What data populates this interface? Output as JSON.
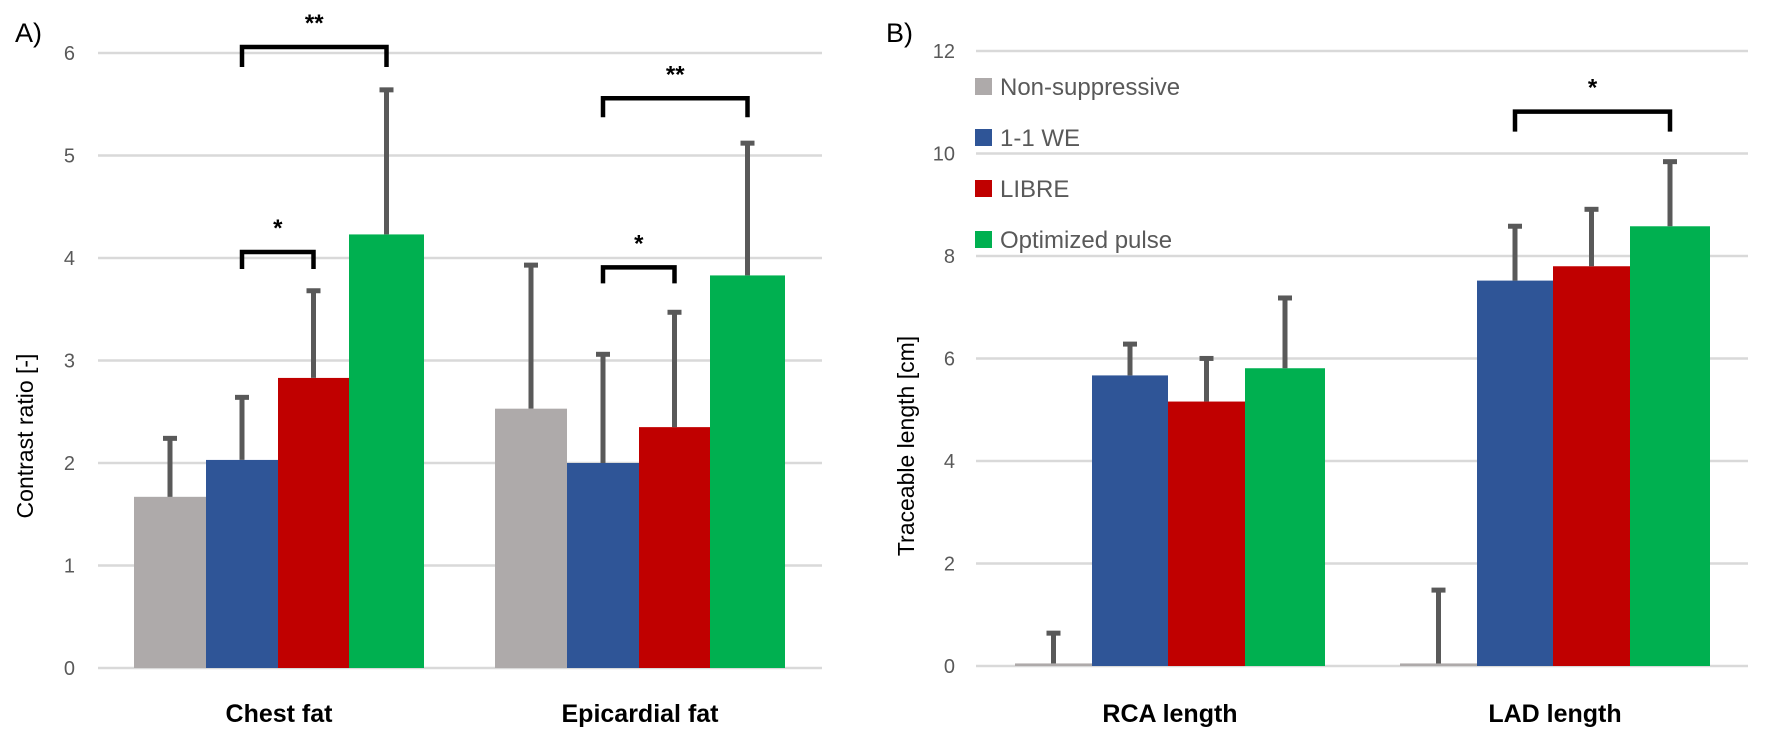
{
  "figure": {
    "panel_labels": [
      "A)",
      "B)"
    ]
  },
  "legend": {
    "placement": "top-left of panel B",
    "entries": [
      {
        "name": "Non-suppressive",
        "color": "#aeaaaa"
      },
      {
        "name": "1-1 WE",
        "color": "#2f5597"
      },
      {
        "name": "LIBRE",
        "color": "#c00000"
      },
      {
        "name": "Optimized pulse",
        "color": "#00b050"
      }
    ]
  },
  "chart_data": [
    {
      "type": "bar",
      "panel": "A)",
      "title": "",
      "xlabel": "",
      "ylabel": "Contrast ratio [-]",
      "ylim": [
        0,
        6
      ],
      "yticks": [
        0,
        1,
        2,
        3,
        4,
        5,
        6
      ],
      "grid": true,
      "categories": [
        "Chest fat",
        "Epicardial fat"
      ],
      "series": [
        {
          "name": "Non-suppressive",
          "color": "#aeaaaa",
          "values": [
            1.67,
            2.53
          ],
          "error_plus": [
            0.59,
            1.42
          ]
        },
        {
          "name": "1-1 WE",
          "color": "#2f5597",
          "values": [
            2.03,
            2.0
          ],
          "error_plus": [
            0.63,
            1.08
          ]
        },
        {
          "name": "LIBRE",
          "color": "#c00000",
          "values": [
            2.83,
            2.35
          ],
          "error_plus": [
            0.87,
            1.14
          ]
        },
        {
          "name": "Optimized pulse",
          "color": "#00b050",
          "values": [
            4.23,
            3.83
          ],
          "error_plus": [
            1.43,
            1.31
          ]
        }
      ],
      "significance": [
        {
          "category": "Chest fat",
          "from": "1-1 WE",
          "to": "LIBRE",
          "label": "*",
          "level": 4.0
        },
        {
          "category": "Chest fat",
          "from": "1-1 WE",
          "to": "Optimized pulse",
          "label": "**",
          "level": 6.0
        },
        {
          "category": "Epicardial fat",
          "from": "1-1 WE",
          "to": "LIBRE",
          "label": "*",
          "level": 3.85
        },
        {
          "category": "Epicardial fat",
          "from": "1-1 WE",
          "to": "Optimized pulse",
          "label": "**",
          "level": 5.5
        }
      ]
    },
    {
      "type": "bar",
      "panel": "B)",
      "title": "",
      "xlabel": "",
      "ylabel": "Traceable length [cm]",
      "ylim": [
        0,
        12
      ],
      "yticks": [
        0,
        2,
        4,
        6,
        8,
        10,
        12
      ],
      "grid": true,
      "legend": "top-left",
      "categories": [
        "RCA length",
        "LAD length"
      ],
      "series": [
        {
          "name": "Non-suppressive",
          "color": "#aeaaaa",
          "values": [
            0.05,
            0.05
          ],
          "error_plus": [
            0.63,
            1.47
          ]
        },
        {
          "name": "1-1 WE",
          "color": "#2f5597",
          "values": [
            5.67,
            7.52
          ],
          "error_plus": [
            0.65,
            1.1
          ]
        },
        {
          "name": "LIBRE",
          "color": "#c00000",
          "values": [
            5.16,
            7.8
          ],
          "error_plus": [
            0.88,
            1.15
          ]
        },
        {
          "name": "Optimized pulse",
          "color": "#00b050",
          "values": [
            5.81,
            8.58
          ],
          "error_plus": [
            1.41,
            1.3
          ]
        }
      ],
      "significance": [
        {
          "category": "LAD length",
          "from": "1-1 WE",
          "to": "Optimized pulse",
          "label": "*",
          "level": 10.7
        }
      ]
    }
  ]
}
